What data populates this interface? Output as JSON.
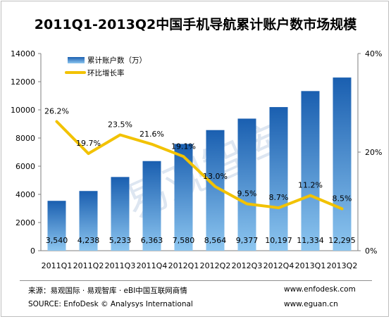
{
  "chart_data": {
    "type": "bar+line",
    "title": "2011Q1-2013Q2中国手机导航累计账户数市场规模",
    "categories": [
      "2011Q1",
      "2011Q2",
      "2011Q3",
      "2011Q4",
      "2012Q1",
      "2012Q2",
      "2012Q3",
      "2012Q4",
      "2013Q1",
      "2013Q2"
    ],
    "series": [
      {
        "name": "累计账户数（万）",
        "type": "bar",
        "axis": "left",
        "values": [
          3540,
          4238,
          5233,
          6363,
          7580,
          8564,
          9377,
          10197,
          11334,
          12295
        ],
        "labels": [
          "3,540",
          "4,238",
          "5,233",
          "6,363",
          "7,580",
          "8,564",
          "9,377",
          "10,197",
          "11,334",
          "12,295"
        ]
      },
      {
        "name": "环比增长率",
        "type": "line",
        "axis": "right",
        "values": [
          26.2,
          19.7,
          23.5,
          21.6,
          19.1,
          13.0,
          9.5,
          8.7,
          11.2,
          8.5
        ],
        "labels": [
          "26.2%",
          "19.7%",
          "23.5%",
          "21.6%",
          "19.1%",
          "13.0%",
          "9.5%",
          "8.7%",
          "11.2%",
          "8.5%"
        ]
      }
    ],
    "y_left": {
      "range": [
        0,
        14000
      ],
      "ticks": [
        "0",
        "2000",
        "4000",
        "6000",
        "8000",
        "10000",
        "12000",
        "14000"
      ]
    },
    "y_right": {
      "range": [
        0,
        40
      ],
      "ticks": [
        "0%",
        "20%",
        "40%"
      ]
    },
    "legend": "top-left",
    "colors": {
      "bar_top": "#1a5fb0",
      "bar_bottom": "#8dc6f0",
      "line": "#f2c200"
    }
  },
  "watermark": "易观智库",
  "footer": {
    "source_cn": "来源：易观国际 · 易观智库 · eBI中国互联网商情",
    "source_en": "SOURCE: EnfoDesk © Analysys International",
    "url1": "www.enfodesk.com",
    "url2": "www.eguan.cn"
  }
}
